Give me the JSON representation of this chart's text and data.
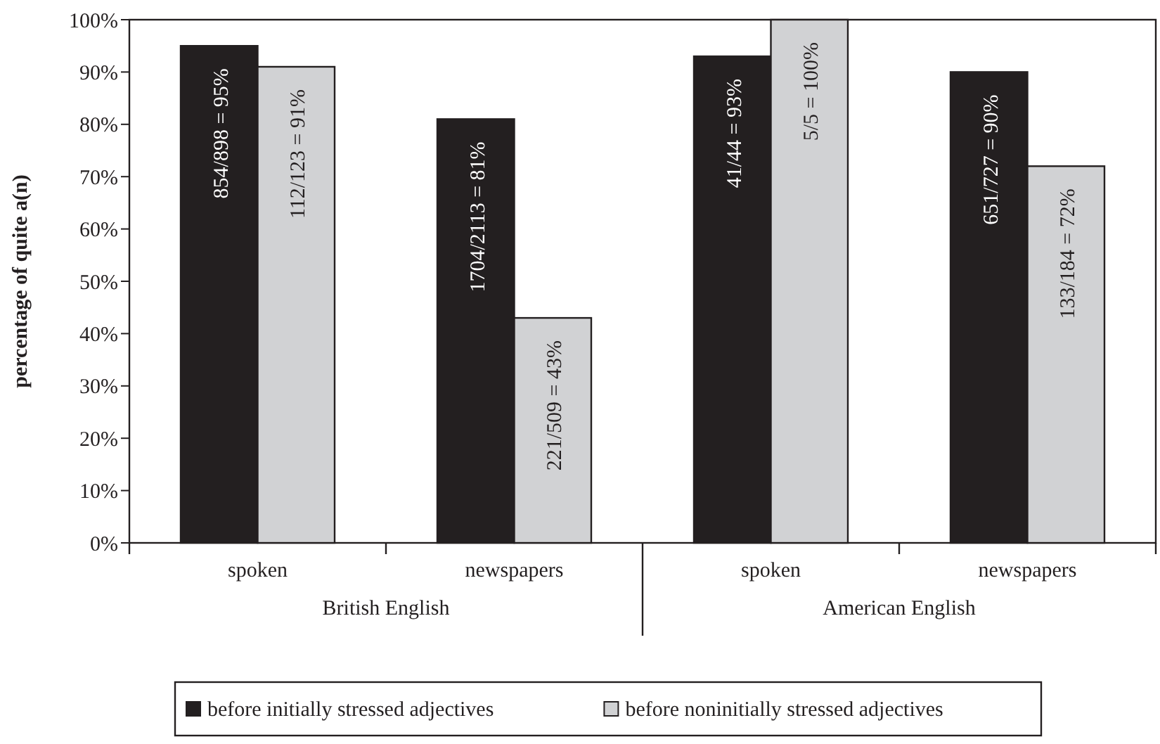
{
  "chart_data": {
    "type": "bar",
    "ylabel": "percentage of quite a(n)",
    "categories": [
      "spoken",
      "newspapers",
      "spoken",
      "newspapers"
    ],
    "series": [
      {
        "name": "before initially stressed adjectives",
        "color": "#231f20",
        "values": [
          95,
          81,
          93,
          90
        ],
        "value_labels": [
          "854/898 = 95%",
          "1704/2113 = 81%",
          "41/44 = 93%",
          "651/727 = 90%"
        ]
      },
      {
        "name": "before noninitially stressed adjectives",
        "color": "#d1d2d4",
        "values": [
          91,
          43,
          100,
          72
        ],
        "value_labels": [
          "112/123 = 91%",
          "221/509 = 43%",
          "5/5 = 100%",
          "133/184 = 72%"
        ]
      }
    ],
    "ylim": [
      0,
      100
    ],
    "yticks": [
      {
        "value": 0,
        "label": "0%"
      },
      {
        "value": 10,
        "label": "10%"
      },
      {
        "value": 20,
        "label": "20%"
      },
      {
        "value": 30,
        "label": "30%"
      },
      {
        "value": 40,
        "label": "40%"
      },
      {
        "value": 50,
        "label": "50%"
      },
      {
        "value": 60,
        "label": "60%"
      },
      {
        "value": 70,
        "label": "70%"
      },
      {
        "value": 80,
        "label": "80%"
      },
      {
        "value": 90,
        "label": "90%"
      },
      {
        "value": 100,
        "label": "100%"
      }
    ],
    "annotations": [
      "British English",
      "American English"
    ],
    "legend": "bottom",
    "grid": false
  }
}
